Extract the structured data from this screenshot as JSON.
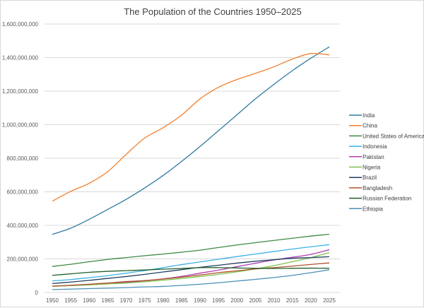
{
  "chart_data": {
    "type": "line",
    "title": "The Population of the Countries 1950–2025",
    "xlabel": "",
    "ylabel": "",
    "ylim": [
      0,
      1600000000
    ],
    "yticks": [
      "0",
      "200,000,000",
      "400,000,000",
      "600,000,000",
      "800,000,000",
      "1,000,000,000",
      "1,200,000,000",
      "1,400,000,000",
      "1,600,000,000"
    ],
    "grid": true,
    "legend": "right",
    "smooth": true,
    "x": [
      1950,
      1955,
      1960,
      1965,
      1970,
      1975,
      1980,
      1985,
      1990,
      1995,
      2000,
      2005,
      2010,
      2015,
      2020,
      2025
    ],
    "series": [
      {
        "name": "India",
        "color": "#2E7BA0",
        "values": [
          346000000,
          383000000,
          436000000,
          495000000,
          555000000,
          623000000,
          697000000,
          781000000,
          870000000,
          964000000,
          1059000000,
          1154000000,
          1240000000,
          1322000000,
          1396000000,
          1464000000
        ]
      },
      {
        "name": "China",
        "color": "#F08030",
        "values": [
          544000000,
          603000000,
          651000000,
          720000000,
          823000000,
          920000000,
          982000000,
          1057000000,
          1154000000,
          1223000000,
          1269000000,
          1306000000,
          1345000000,
          1391000000,
          1424000000,
          1416000000
        ]
      },
      {
        "name": "United States of America",
        "color": "#3E8A45",
        "values": [
          155000000,
          168000000,
          183000000,
          197000000,
          208000000,
          219000000,
          229000000,
          240000000,
          252000000,
          268000000,
          283000000,
          297000000,
          310000000,
          323000000,
          336000000,
          347000000
        ]
      },
      {
        "name": "Indonesia",
        "color": "#3AB0E6",
        "values": [
          69000000,
          77000000,
          88000000,
          100000000,
          115000000,
          130000000,
          148000000,
          166000000,
          182000000,
          198000000,
          214000000,
          229000000,
          244000000,
          259000000,
          272000000,
          285000000
        ]
      },
      {
        "name": "Pakistan",
        "color": "#B040B0",
        "values": [
          37000000,
          41000000,
          46000000,
          53000000,
          60000000,
          70000000,
          81000000,
          96000000,
          115000000,
          133000000,
          154000000,
          174000000,
          194000000,
          210000000,
          227000000,
          255000000
        ]
      },
      {
        "name": "Nigeria",
        "color": "#7CC04A",
        "values": [
          37000000,
          41000000,
          45000000,
          51000000,
          56000000,
          64000000,
          73000000,
          83000000,
          95000000,
          108000000,
          123000000,
          140000000,
          160000000,
          183000000,
          208000000,
          238000000
        ]
      },
      {
        "name": "Brazil",
        "color": "#1F3F60",
        "values": [
          53000000,
          62000000,
          72000000,
          84000000,
          95000000,
          108000000,
          122000000,
          136000000,
          150000000,
          162000000,
          175000000,
          186000000,
          195000000,
          204000000,
          208000000,
          213000000
        ]
      },
      {
        "name": "Bangladesh",
        "color": "#B0502A",
        "values": [
          38000000,
          43000000,
          49000000,
          56000000,
          65000000,
          71000000,
          80000000,
          91000000,
          104000000,
          118000000,
          129000000,
          140000000,
          148000000,
          157000000,
          167000000,
          176000000
        ]
      },
      {
        "name": "Russian Federation",
        "color": "#1F5F2A",
        "values": [
          102000000,
          111000000,
          120000000,
          126000000,
          130000000,
          134000000,
          139000000,
          143000000,
          148000000,
          148000000,
          146000000,
          144000000,
          143000000,
          144000000,
          145000000,
          144000000
        ]
      },
      {
        "name": "Ethiopia",
        "color": "#4A90B8",
        "values": [
          17000000,
          20000000,
          23000000,
          26000000,
          29000000,
          33000000,
          36000000,
          42000000,
          49000000,
          58000000,
          68000000,
          78000000,
          89000000,
          102000000,
          118000000,
          135000000
        ]
      }
    ]
  }
}
